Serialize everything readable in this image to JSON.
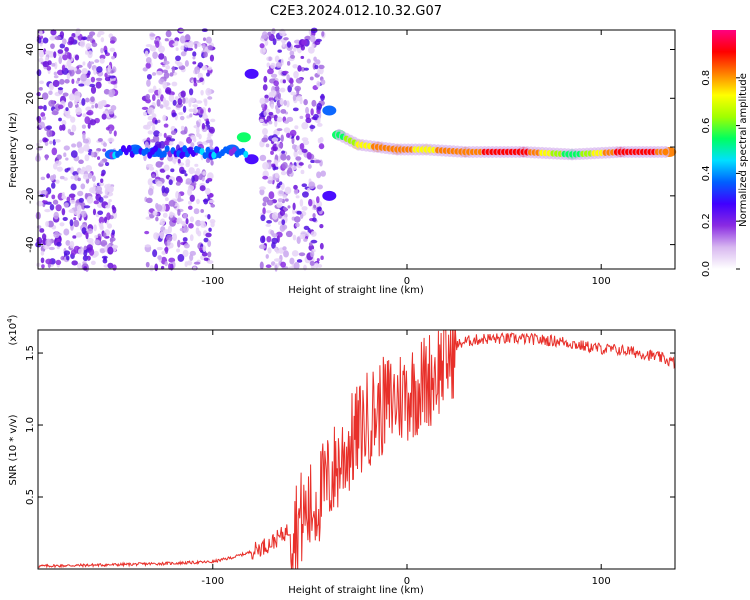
{
  "title": "C2E3.2024.012.10.32.G07",
  "chart_data": [
    {
      "type": "heatmap",
      "xlabel": "Height of straight line (km)",
      "ylabel": "Frequency (Hz)",
      "xlim": [
        -190,
        138
      ],
      "ylim": [
        -50,
        48
      ],
      "x_ticks": [
        "-100",
        "0",
        "100"
      ],
      "x_tick_values": [
        -100,
        0,
        100
      ],
      "y_ticks": [
        "40",
        "20",
        "0",
        "-20",
        "-40"
      ],
      "y_tick_values": [
        40,
        20,
        0,
        -20,
        -40
      ],
      "colorbar": {
        "label": "Normalized spectral amplitude",
        "ticks": [
          "0.0",
          "0.2",
          "0.4",
          "0.6",
          "0.8"
        ],
        "tick_values": [
          0,
          0.2,
          0.4,
          0.6,
          0.8
        ],
        "range": [
          0,
          1
        ],
        "colors": [
          "#ffffff",
          "#d8b8f0",
          "#8a2be2",
          "#4000ff",
          "#0060ff",
          "#00e0ff",
          "#00ff60",
          "#a0ff00",
          "#ffff00",
          "#ff8000",
          "#ff0000",
          "#ff0080"
        ]
      },
      "ridge": [
        {
          "x": -152,
          "y": -3,
          "amp": 0.35
        },
        {
          "x": -140,
          "y": -1,
          "amp": 0.4
        },
        {
          "x": -130,
          "y": -2,
          "amp": 0.35
        },
        {
          "x": -115,
          "y": -2,
          "amp": 0.3
        },
        {
          "x": -100,
          "y": -3,
          "amp": 0.35
        },
        {
          "x": -90,
          "y": -1,
          "amp": 0.4
        },
        {
          "x": -84,
          "y": 4,
          "amp": 0.5
        },
        {
          "x": -80,
          "y": 30,
          "amp": 0.3
        },
        {
          "x": -80,
          "y": -5,
          "amp": 0.3
        },
        {
          "x": -40,
          "y": 15,
          "amp": 0.35
        },
        {
          "x": -40,
          "y": -20,
          "amp": 0.3
        },
        {
          "x": -35,
          "y": 5,
          "amp": 0.55
        },
        {
          "x": -25,
          "y": 1,
          "amp": 0.7
        },
        {
          "x": -15,
          "y": 0,
          "amp": 0.8
        },
        {
          "x": -5,
          "y": -1,
          "amp": 0.8
        },
        {
          "x": 10,
          "y": -1,
          "amp": 0.75
        },
        {
          "x": 30,
          "y": -2,
          "amp": 0.85
        },
        {
          "x": 60,
          "y": -2,
          "amp": 0.9
        },
        {
          "x": 85,
          "y": -3,
          "amp": 0.5
        },
        {
          "x": 110,
          "y": -2,
          "amp": 0.9
        },
        {
          "x": 135,
          "y": -2,
          "amp": 0.85
        }
      ]
    },
    {
      "type": "line",
      "xlabel": "Height of straight line (km)",
      "ylabel": "SNR (10 * v/v)",
      "y_scale_label": "(x10",
      "y_scale_exp": "4",
      "y_scale_close": ")",
      "xlim": [
        -190,
        138
      ],
      "ylim": [
        0,
        1.66
      ],
      "x_ticks": [
        "-100",
        "0",
        "100"
      ],
      "x_tick_values": [
        -100,
        0,
        100
      ],
      "y_ticks": [
        "1.5",
        "1.0",
        "0.5"
      ],
      "y_tick_values": [
        1.5,
        1.0,
        0.5
      ],
      "series": [
        {
          "color": "#e8302a",
          "x": [
            -190,
            -150,
            -120,
            -100,
            -90,
            -80,
            -70,
            -60,
            -50,
            -40,
            -30,
            -20,
            -10,
            0,
            10,
            20,
            25,
            30,
            40,
            60,
            80,
            90,
            100,
            110,
            120,
            130,
            138
          ],
          "y": [
            0.02,
            0.03,
            0.04,
            0.05,
            0.08,
            0.12,
            0.18,
            0.28,
            0.4,
            0.62,
            0.85,
            1.05,
            1.15,
            1.22,
            1.3,
            1.45,
            1.55,
            1.58,
            1.6,
            1.6,
            1.58,
            1.55,
            1.53,
            1.52,
            1.5,
            1.47,
            1.43
          ]
        }
      ]
    }
  ]
}
